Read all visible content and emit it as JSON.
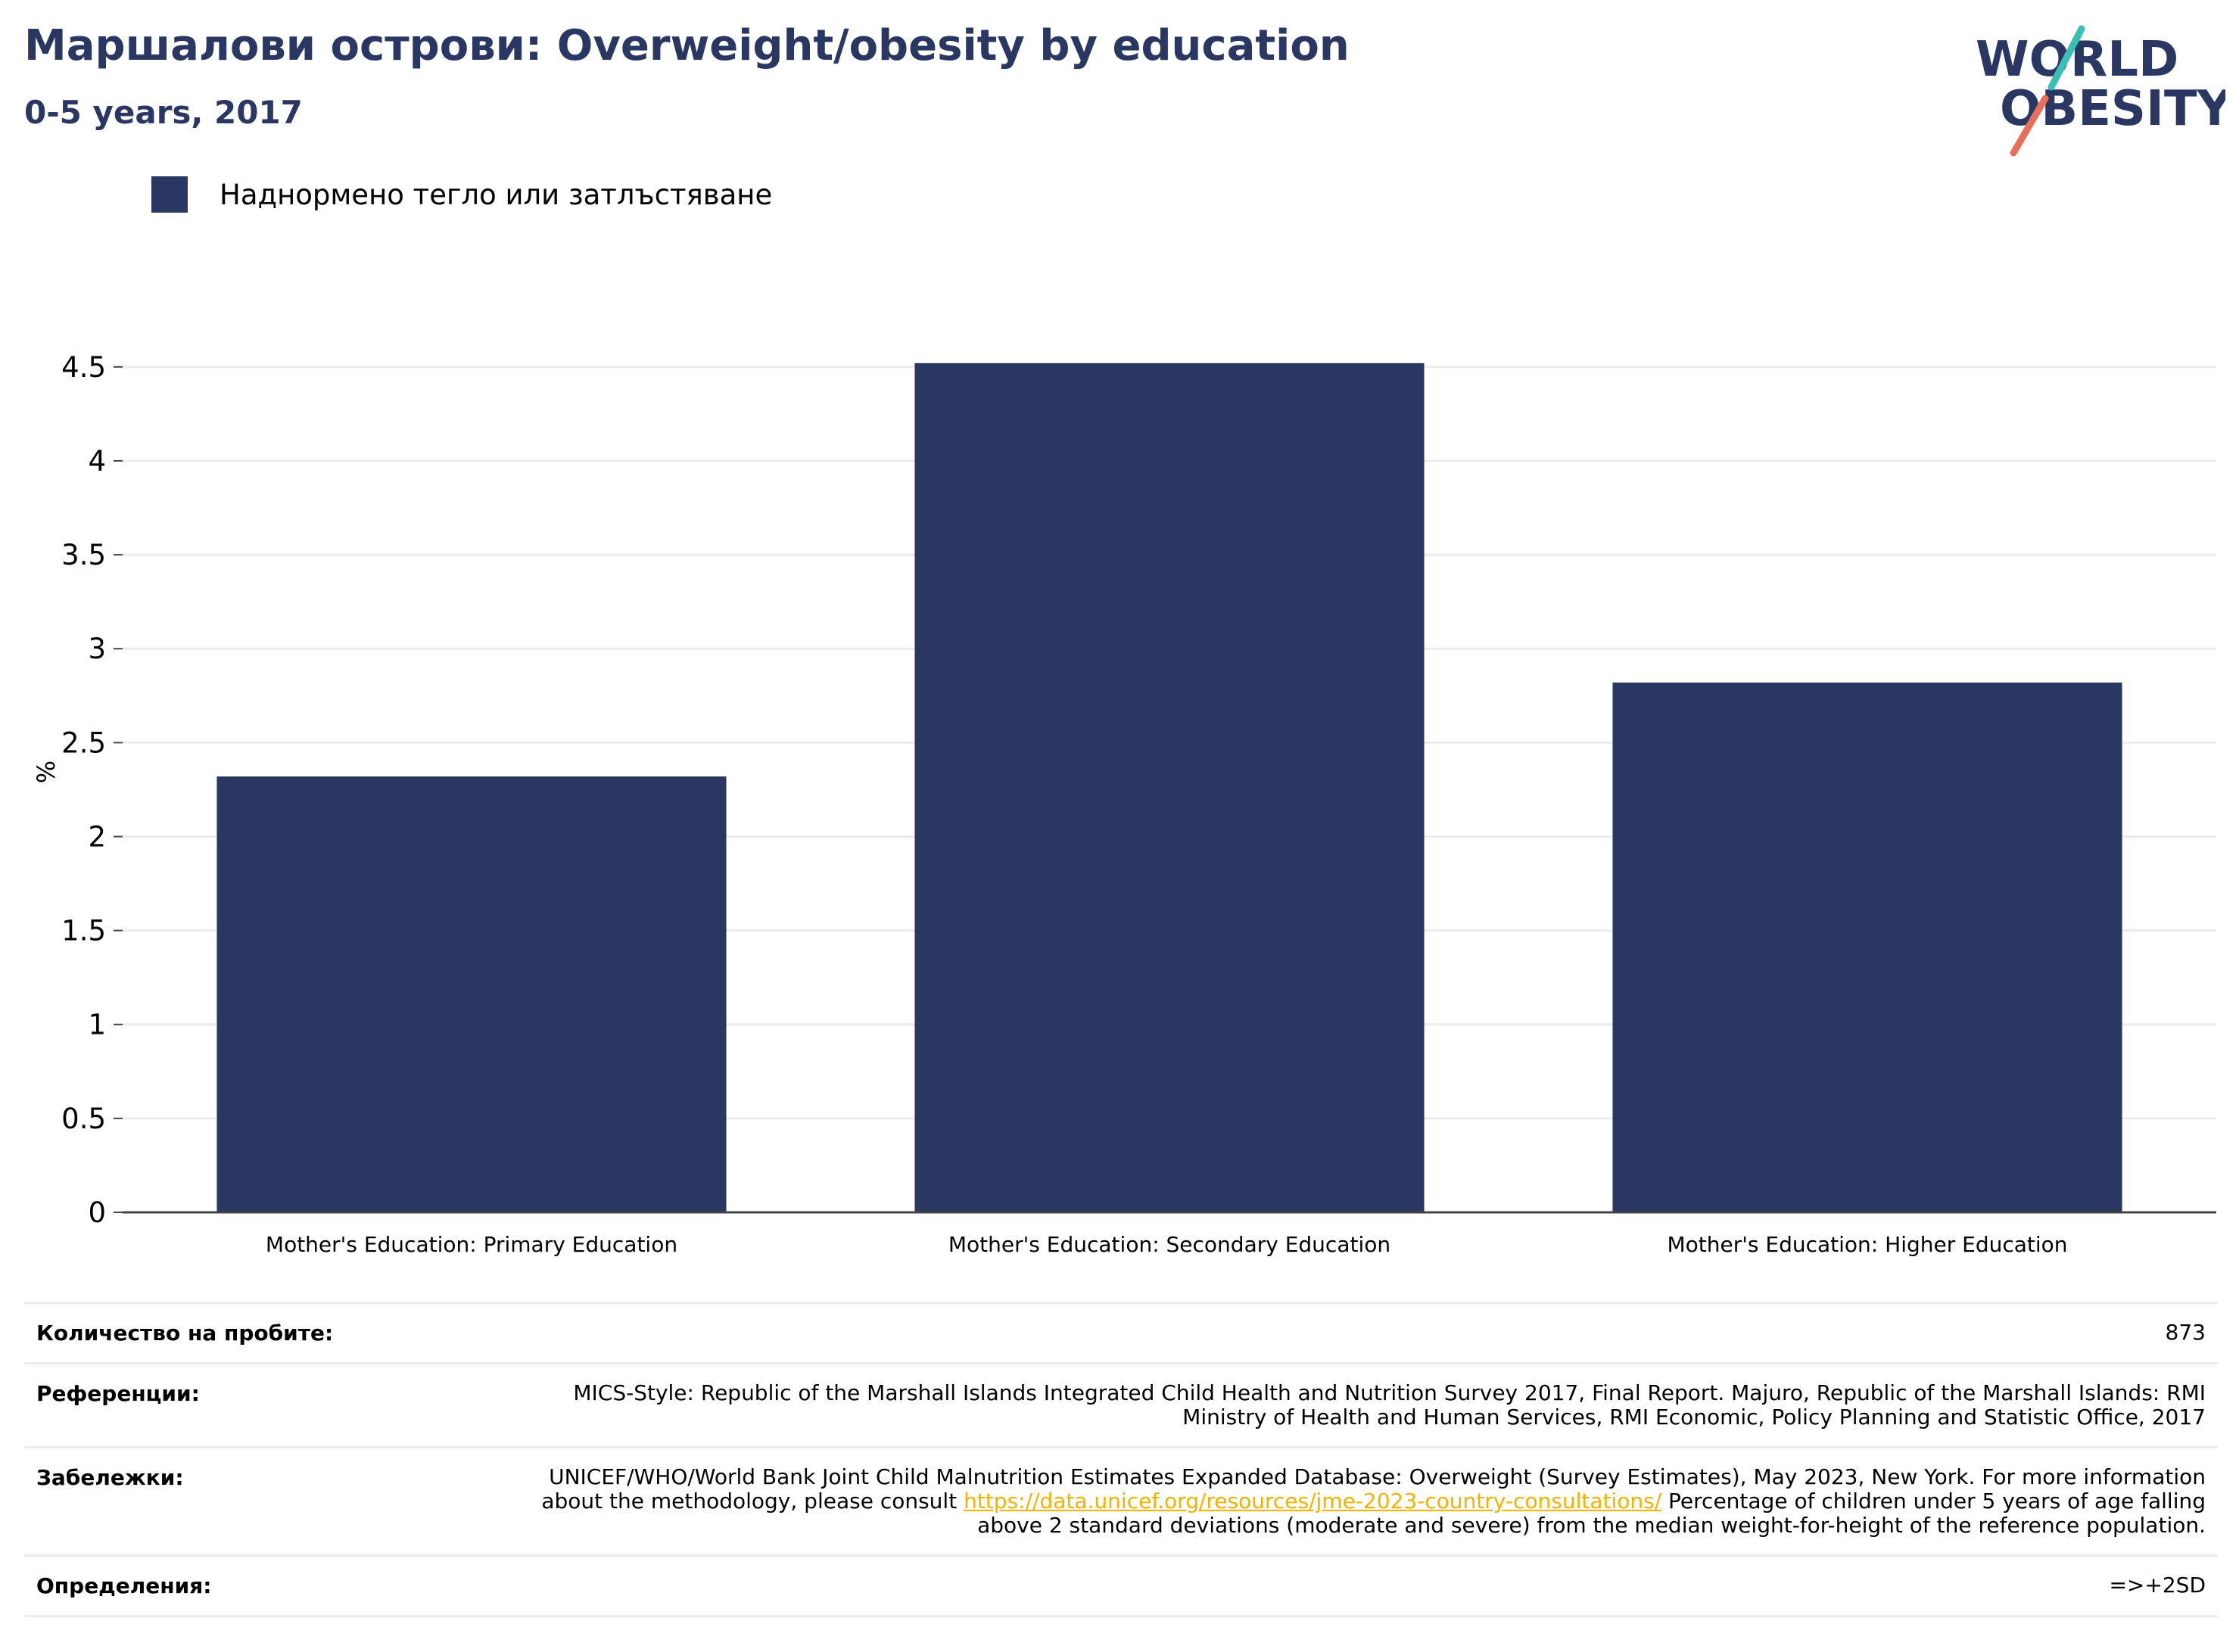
{
  "header": {
    "title": "Маршалови острови: Overweight/obesity by education",
    "subtitle": "0-5 years, 2017"
  },
  "logo": {
    "line1": "WORLD",
    "line2": "OBESITY"
  },
  "colors": {
    "bar": "#2a3763",
    "title": "#2a3763",
    "link": "#f0b400",
    "logo_teal": "#3bbfb5",
    "logo_coral": "#e8705a"
  },
  "chart_data": {
    "type": "bar",
    "categories": [
      "Mother's Education: Primary Education",
      "Mother's Education: Secondary Education",
      "Mother's Education: Higher Education"
    ],
    "series": [
      {
        "name": "Наднормено тегло или затлъстяване",
        "values": [
          2.32,
          4.52,
          2.82
        ]
      }
    ],
    "ylabel": "%",
    "ylim": [
      0,
      4.6
    ],
    "yticks": [
      0,
      0.5,
      1,
      1.5,
      2,
      2.5,
      3,
      3.5,
      4,
      4.5
    ],
    "ytick_labels": [
      "0",
      "0.5",
      "1",
      "1.5",
      "2",
      "2.5",
      "3",
      "3.5",
      "4",
      "4.5"
    ],
    "grid": true,
    "legend_position": "top-left"
  },
  "info": {
    "sample_label": "Количество на пробите:",
    "sample_value": "873",
    "references_label": "Референции:",
    "references_value": "MICS-Style: Republic of the Marshall Islands Integrated Child Health and Nutrition Survey 2017, Final Report. Majuro, Republic of the Marshall Islands: RMI Ministry of Health and Human Services, RMI Economic, Policy Planning and Statistic Office, 2017",
    "notes_label": "Забележки:",
    "notes_before": "UNICEF/WHO/World Bank Joint Child Malnutrition Estimates Expanded Database: Overweight (Survey Estimates), May 2023, New York. For more information about the methodology, please consult",
    "notes_link": "https://data.unicef.org/resources/jme-2023-country-consultations/",
    "notes_after": "Percentage of children under 5 years of age falling above 2 standard deviations (moderate and severe) from the median weight-for-height of the reference population.",
    "definitions_label": "Определения:",
    "definitions_value": "=>+2SD"
  }
}
